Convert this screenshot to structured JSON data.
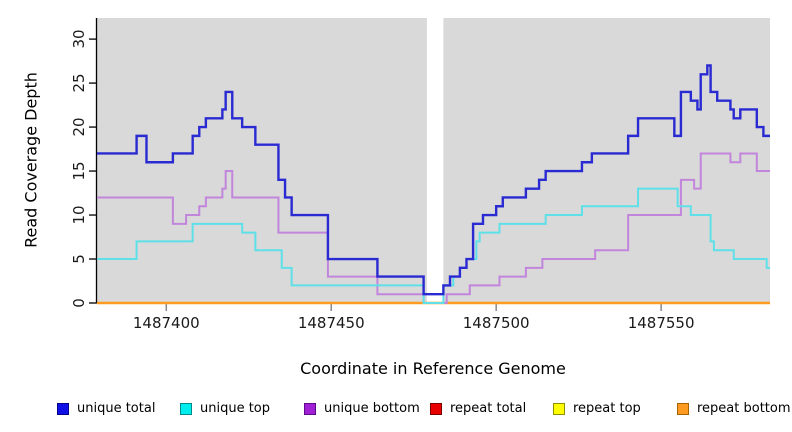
{
  "chart_data": {
    "type": "line",
    "subtype": "step",
    "title": "",
    "xlabel": "Coordinate in Reference Genome",
    "ylabel": "Read Coverage Depth",
    "background": "#d9d9d9",
    "grid": false,
    "x_range": [
      1487379,
      1487583
    ],
    "y_range": [
      0,
      32.4
    ],
    "x_ticks": [
      {
        "value": 1487400,
        "label": "1487400"
      },
      {
        "value": 1487450,
        "label": "1487450"
      },
      {
        "value": 1487500,
        "label": "1487500"
      },
      {
        "value": 1487550,
        "label": "1487550"
      }
    ],
    "y_ticks": [
      {
        "value": 0,
        "label": "0"
      },
      {
        "value": 5,
        "label": "5"
      },
      {
        "value": 10,
        "label": "10"
      },
      {
        "value": 15,
        "label": "15"
      },
      {
        "value": 20,
        "label": "20"
      },
      {
        "value": 25,
        "label": "25"
      },
      {
        "value": 30,
        "label": "30"
      }
    ],
    "masked_region": {
      "x_start": 1487479,
      "x_end": 1487484,
      "color": "#ffffff"
    },
    "series": [
      {
        "name": "repeat total",
        "color": "#e80000",
        "width": 2,
        "steps": [
          [
            1487379,
            0
          ]
        ]
      },
      {
        "name": "repeat top",
        "color": "#ffff00",
        "width": 2,
        "steps": [
          [
            1487379,
            0
          ]
        ]
      },
      {
        "name": "repeat bottom",
        "color": "#ff9b20",
        "width": 2.4,
        "steps": [
          [
            1487379,
            0
          ]
        ]
      },
      {
        "name": "unique bottom",
        "color": "#c285dc",
        "width": 2,
        "steps": [
          [
            1487379,
            12
          ],
          [
            1487402,
            9
          ],
          [
            1487406,
            10
          ],
          [
            1487410,
            11
          ],
          [
            1487412,
            12
          ],
          [
            1487417,
            13
          ],
          [
            1487418,
            15
          ],
          [
            1487420,
            12
          ],
          [
            1487434,
            8
          ],
          [
            1487449,
            3
          ],
          [
            1487464,
            1
          ],
          [
            1487478,
            0
          ],
          [
            1487485,
            1
          ],
          [
            1487492,
            2
          ],
          [
            1487501,
            3
          ],
          [
            1487509,
            4
          ],
          [
            1487514,
            5
          ],
          [
            1487530,
            6
          ],
          [
            1487540,
            10
          ],
          [
            1487556,
            14
          ],
          [
            1487560,
            13
          ],
          [
            1487562,
            17
          ],
          [
            1487571,
            16
          ],
          [
            1487574,
            17
          ],
          [
            1487579,
            15
          ]
        ]
      },
      {
        "name": "unique top",
        "color": "#5fe0e8",
        "width": 2,
        "steps": [
          [
            1487379,
            5
          ],
          [
            1487391,
            7
          ],
          [
            1487408,
            9
          ],
          [
            1487423,
            8
          ],
          [
            1487427,
            6
          ],
          [
            1487435,
            4
          ],
          [
            1487438,
            2
          ],
          [
            1487478,
            0
          ],
          [
            1487484,
            2
          ],
          [
            1487487,
            3
          ],
          [
            1487489,
            4
          ],
          [
            1487491,
            5
          ],
          [
            1487494,
            7
          ],
          [
            1487495,
            8
          ],
          [
            1487501,
            9
          ],
          [
            1487515,
            10
          ],
          [
            1487526,
            11
          ],
          [
            1487543,
            13
          ],
          [
            1487555,
            11
          ],
          [
            1487559,
            10
          ],
          [
            1487565,
            7
          ],
          [
            1487566,
            6
          ],
          [
            1487572,
            5
          ],
          [
            1487582,
            4
          ]
        ]
      },
      {
        "name": "unique total",
        "color": "#2a2ad2",
        "width": 2.4,
        "steps": [
          [
            1487379,
            17
          ],
          [
            1487391,
            19
          ],
          [
            1487394,
            16
          ],
          [
            1487402,
            17
          ],
          [
            1487408,
            19
          ],
          [
            1487410,
            20
          ],
          [
            1487412,
            21
          ],
          [
            1487417,
            22
          ],
          [
            1487418,
            24
          ],
          [
            1487420,
            21
          ],
          [
            1487423,
            20
          ],
          [
            1487427,
            18
          ],
          [
            1487434,
            14
          ],
          [
            1487436,
            12
          ],
          [
            1487438,
            10
          ],
          [
            1487449,
            5
          ],
          [
            1487464,
            3
          ],
          [
            1487478,
            1
          ],
          [
            1487484,
            2
          ],
          [
            1487486,
            3
          ],
          [
            1487489,
            4
          ],
          [
            1487491,
            5
          ],
          [
            1487493,
            9
          ],
          [
            1487496,
            10
          ],
          [
            1487500,
            11
          ],
          [
            1487502,
            12
          ],
          [
            1487509,
            13
          ],
          [
            1487513,
            14
          ],
          [
            1487515,
            15
          ],
          [
            1487526,
            16
          ],
          [
            1487529,
            17
          ],
          [
            1487540,
            19
          ],
          [
            1487543,
            21
          ],
          [
            1487554,
            19
          ],
          [
            1487556,
            24
          ],
          [
            1487559,
            23
          ],
          [
            1487561,
            22
          ],
          [
            1487562,
            26
          ],
          [
            1487564,
            27
          ],
          [
            1487565,
            24
          ],
          [
            1487567,
            23
          ],
          [
            1487571,
            22
          ],
          [
            1487572,
            21
          ],
          [
            1487574,
            22
          ],
          [
            1487579,
            20
          ],
          [
            1487581,
            19
          ]
        ]
      }
    ],
    "legend": [
      {
        "label": "unique total",
        "fill": "#0f0fe6",
        "border": "#00008b"
      },
      {
        "label": "unique top",
        "fill": "#00eded",
        "border": "#008b8b"
      },
      {
        "label": "unique bottom",
        "fill": "#a11fd4",
        "border": "#5e0b8b"
      },
      {
        "label": "repeat total",
        "fill": "#e80000",
        "border": "#7a0000"
      },
      {
        "label": "repeat top",
        "fill": "#ffff00",
        "border": "#8f8f00"
      },
      {
        "label": "repeat bottom",
        "fill": "#ff9b20",
        "border": "#a66300"
      }
    ]
  }
}
